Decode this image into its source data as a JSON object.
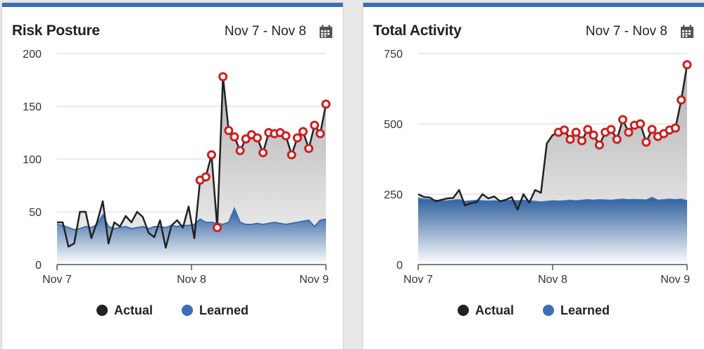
{
  "chart_data": [
    {
      "type": "line",
      "title": "Risk Posture",
      "date_range": "Nov 7 - Nov 8",
      "ylim": [
        0,
        200
      ],
      "yticks": [
        "0",
        "50",
        "100",
        "150",
        "200"
      ],
      "xticks": [
        "Nov 7",
        "Nov 8",
        "Nov 9"
      ],
      "anomaly_start": 25,
      "series": [
        {
          "name": "Actual",
          "color": "#222222",
          "values": [
            40,
            40,
            17,
            20,
            50,
            50,
            25,
            40,
            60,
            20,
            40,
            36,
            46,
            40,
            50,
            45,
            30,
            26,
            42,
            16,
            37,
            42,
            35,
            55,
            25,
            80,
            83,
            104,
            35,
            178,
            127,
            121,
            108,
            119,
            123,
            120,
            106,
            125,
            124,
            125,
            122,
            104,
            120,
            126,
            110,
            132,
            124,
            152
          ]
        },
        {
          "name": "Learned",
          "color": "#3a6fb5",
          "values": [
            38,
            37,
            35,
            33,
            34,
            36,
            35,
            38,
            47,
            36,
            34,
            35,
            36,
            34,
            35,
            36,
            34,
            36,
            36,
            35,
            37,
            36,
            37,
            37,
            38,
            43,
            40,
            40,
            39,
            38,
            40,
            53,
            40,
            38,
            38,
            39,
            38,
            39,
            40,
            39,
            38,
            39,
            40,
            41,
            42,
            36,
            42,
            43
          ]
        }
      ]
    },
    {
      "type": "line",
      "title": "Total Activity",
      "date_range": "Nov 7 - Nov 8",
      "ylim": [
        0,
        750
      ],
      "yticks": [
        "0",
        "250",
        "500",
        "750"
      ],
      "xticks": [
        "Nov 7",
        "Nov 8",
        "Nov 9"
      ],
      "anomaly_start": 24,
      "series": [
        {
          "name": "Actual",
          "color": "#222222",
          "values": [
            250,
            240,
            238,
            225,
            230,
            235,
            237,
            265,
            210,
            218,
            222,
            250,
            235,
            242,
            225,
            230,
            240,
            195,
            250,
            220,
            265,
            255,
            430,
            460,
            470,
            478,
            445,
            470,
            440,
            480,
            460,
            425,
            470,
            480,
            445,
            515,
            470,
            495,
            500,
            435,
            480,
            455,
            465,
            478,
            485,
            585,
            710
          ]
        },
        {
          "name": "Learned",
          "color": "#3a6fb5",
          "values": [
            235,
            232,
            230,
            228,
            225,
            226,
            228,
            230,
            224,
            226,
            228,
            226,
            225,
            226,
            224,
            226,
            228,
            226,
            228,
            226,
            224,
            222,
            224,
            226,
            225,
            226,
            228,
            226,
            228,
            230,
            228,
            230,
            229,
            228,
            230,
            232,
            230,
            231,
            230,
            229,
            238,
            228,
            230,
            232,
            230,
            232,
            226
          ]
        }
      ]
    }
  ],
  "legend": {
    "actual": "Actual",
    "learned": "Learned"
  },
  "colors": {
    "header_bar": "#3a6fb5",
    "anomaly_ring": "#cc1f1f"
  },
  "icons": {
    "calendar": "calendar-icon"
  }
}
